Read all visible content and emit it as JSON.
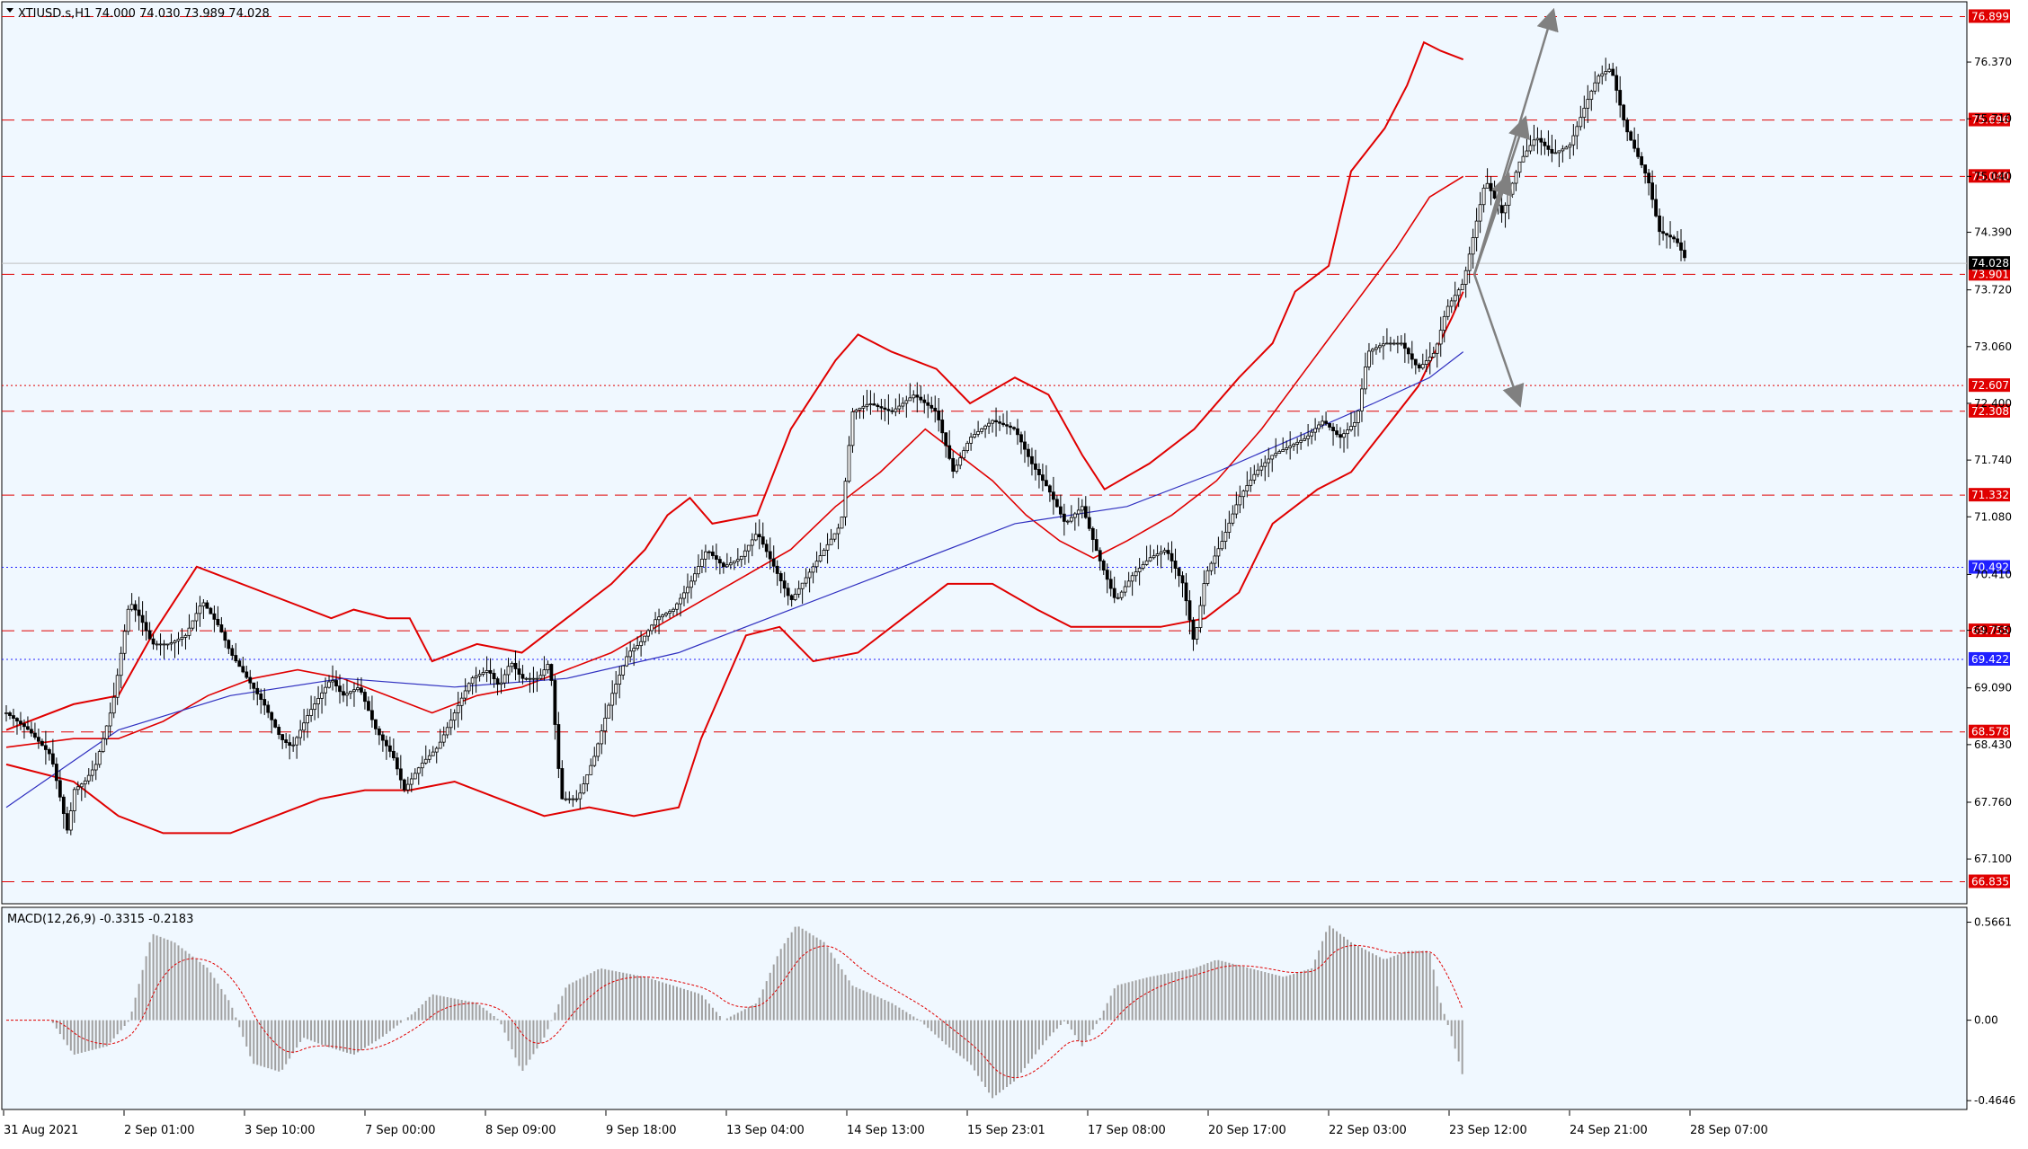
{
  "header": {
    "symbol_line": "XTIUSD.s,H1  74.000 74.030 73.989 74.028"
  },
  "macd_header": {
    "label": "MACD(12,26,9) -0.3315 -0.2183"
  },
  "colors": {
    "background": "#f0f8ff",
    "bollinger": "#e00000",
    "ma": "#3030c0",
    "resistance": "#e00000",
    "blue_level": "#2020ff",
    "candles": "#000000",
    "arrows": "#808080",
    "macd_hist": "#a0a0a0",
    "macd_signal": "#e00000"
  },
  "chart_data": [
    {
      "type": "candlestick",
      "title": "XTIUSD.s,H1",
      "ylim": [
        66.6,
        77.05
      ],
      "price_ticks": [
        "76.370",
        "75.710",
        "75.040",
        "74.390",
        "73.720",
        "73.060",
        "72.400",
        "71.740",
        "71.080",
        "70.410",
        "69.760",
        "69.090",
        "68.430",
        "67.760",
        "67.100"
      ],
      "x_tick_labels": [
        "31 Aug 2021",
        "2 Sep 01:00",
        "3 Sep 10:00",
        "7 Sep 00:00",
        "8 Sep 09:00",
        "9 Sep 18:00",
        "13 Sep 04:00",
        "14 Sep 13:00",
        "15 Sep 23:01",
        "17 Sep 08:00",
        "20 Sep 17:00",
        "22 Sep 03:00",
        "23 Sep 12:00",
        "24 Sep 21:00",
        "28 Sep 07:00"
      ],
      "current_price": "74.028",
      "levels": [
        {
          "value": 76.899,
          "label": "76.899",
          "style": "dashed",
          "color": "#e00000"
        },
        {
          "value": 75.696,
          "label": "75.696",
          "style": "dashed",
          "color": "#e00000"
        },
        {
          "value": 75.04,
          "label": "75.040",
          "style": "dashed",
          "color": "#e00000"
        },
        {
          "value": 73.901,
          "label": "73.901",
          "style": "dashed",
          "color": "#e00000"
        },
        {
          "value": 72.607,
          "label": "72.607",
          "style": "dotted",
          "color": "#e00000"
        },
        {
          "value": 72.308,
          "label": "72.308",
          "style": "dashed",
          "color": "#e00000"
        },
        {
          "value": 71.332,
          "label": "71.332",
          "style": "dashed",
          "color": "#e00000"
        },
        {
          "value": 70.492,
          "label": "70.492",
          "style": "dotted",
          "color": "#2020ff"
        },
        {
          "value": 69.755,
          "label": "69.755",
          "style": "dashed",
          "color": "#e00000"
        },
        {
          "value": 69.422,
          "label": "69.422",
          "style": "dotted",
          "color": "#2020ff"
        },
        {
          "value": 68.578,
          "label": "68.578",
          "style": "dashed",
          "color": "#e00000"
        },
        {
          "value": 66.835,
          "label": "66.835",
          "style": "dashed",
          "color": "#e00000"
        }
      ],
      "price_path": [
        [
          0,
          68.8
        ],
        [
          20,
          68.6
        ],
        [
          40,
          68.3
        ],
        [
          55,
          67.4
        ],
        [
          60,
          67.9
        ],
        [
          70,
          68.0
        ],
        [
          80,
          68.2
        ],
        [
          95,
          68.9
        ],
        [
          110,
          70.1
        ],
        [
          120,
          69.9
        ],
        [
          130,
          69.6
        ],
        [
          145,
          69.6
        ],
        [
          160,
          69.7
        ],
        [
          175,
          70.1
        ],
        [
          190,
          69.8
        ],
        [
          200,
          69.5
        ],
        [
          215,
          69.2
        ],
        [
          230,
          68.9
        ],
        [
          245,
          68.5
        ],
        [
          255,
          68.4
        ],
        [
          270,
          68.8
        ],
        [
          290,
          69.2
        ],
        [
          300,
          69.0
        ],
        [
          315,
          69.1
        ],
        [
          330,
          68.6
        ],
        [
          345,
          68.3
        ],
        [
          355,
          67.9
        ],
        [
          370,
          68.2
        ],
        [
          385,
          68.4
        ],
        [
          400,
          68.8
        ],
        [
          415,
          69.2
        ],
        [
          430,
          69.3
        ],
        [
          440,
          69.1
        ],
        [
          450,
          69.4
        ],
        [
          460,
          69.2
        ],
        [
          475,
          69.2
        ],
        [
          485,
          69.4
        ],
        [
          495,
          67.8
        ],
        [
          510,
          67.8
        ],
        [
          525,
          68.3
        ],
        [
          540,
          69.0
        ],
        [
          555,
          69.5
        ],
        [
          565,
          69.6
        ],
        [
          580,
          69.9
        ],
        [
          595,
          70.0
        ],
        [
          610,
          70.3
        ],
        [
          625,
          70.7
        ],
        [
          640,
          70.5
        ],
        [
          655,
          70.6
        ],
        [
          670,
          70.9
        ],
        [
          685,
          70.5
        ],
        [
          700,
          70.1
        ],
        [
          715,
          70.4
        ],
        [
          730,
          70.7
        ],
        [
          745,
          71.0
        ],
        [
          755,
          72.3
        ],
        [
          770,
          72.4
        ],
        [
          790,
          72.3
        ],
        [
          810,
          72.5
        ],
        [
          830,
          72.3
        ],
        [
          845,
          71.6
        ],
        [
          860,
          72.0
        ],
        [
          880,
          72.2
        ],
        [
          900,
          72.1
        ],
        [
          915,
          71.7
        ],
        [
          930,
          71.4
        ],
        [
          945,
          71.0
        ],
        [
          960,
          71.2
        ],
        [
          975,
          70.6
        ],
        [
          990,
          70.1
        ],
        [
          1005,
          70.4
        ],
        [
          1020,
          70.6
        ],
        [
          1035,
          70.7
        ],
        [
          1050,
          70.3
        ],
        [
          1060,
          69.6
        ],
        [
          1070,
          70.4
        ],
        [
          1085,
          70.8
        ],
        [
          1100,
          71.3
        ],
        [
          1115,
          71.6
        ],
        [
          1130,
          71.8
        ],
        [
          1145,
          71.9
        ],
        [
          1160,
          72.0
        ],
        [
          1175,
          72.2
        ],
        [
          1190,
          72.0
        ],
        [
          1205,
          72.2
        ],
        [
          1215,
          73.0
        ],
        [
          1230,
          73.1
        ],
        [
          1245,
          73.1
        ],
        [
          1260,
          72.8
        ],
        [
          1275,
          73.0
        ],
        [
          1285,
          73.5
        ],
        [
          1300,
          73.8
        ],
        [
          1310,
          74.4
        ],
        [
          1320,
          75.0
        ],
        [
          1335,
          74.6
        ],
        [
          1350,
          75.2
        ],
        [
          1365,
          75.5
        ],
        [
          1380,
          75.3
        ],
        [
          1395,
          75.4
        ],
        [
          1410,
          75.9
        ],
        [
          1420,
          76.2
        ],
        [
          1432,
          76.3
        ],
        [
          1445,
          75.6
        ],
        [
          1455,
          75.3
        ],
        [
          1465,
          75.0
        ],
        [
          1475,
          74.4
        ],
        [
          1490,
          74.3
        ],
        [
          1500,
          74.03
        ]
      ],
      "bollinger_upper": [
        [
          0,
          68.6
        ],
        [
          60,
          68.9
        ],
        [
          100,
          69.0
        ],
        [
          130,
          69.7
        ],
        [
          170,
          70.5
        ],
        [
          230,
          70.2
        ],
        [
          290,
          69.9
        ],
        [
          310,
          70.0
        ],
        [
          340,
          69.9
        ],
        [
          360,
          69.9
        ],
        [
          380,
          69.4
        ],
        [
          420,
          69.6
        ],
        [
          460,
          69.5
        ],
        [
          500,
          69.9
        ],
        [
          540,
          70.3
        ],
        [
          570,
          70.7
        ],
        [
          590,
          71.1
        ],
        [
          610,
          71.3
        ],
        [
          630,
          71.0
        ],
        [
          670,
          71.1
        ],
        [
          700,
          72.1
        ],
        [
          740,
          72.9
        ],
        [
          760,
          73.2
        ],
        [
          790,
          73.0
        ],
        [
          830,
          72.8
        ],
        [
          860,
          72.4
        ],
        [
          900,
          72.7
        ],
        [
          930,
          72.5
        ],
        [
          960,
          71.8
        ],
        [
          980,
          71.4
        ],
        [
          1020,
          71.7
        ],
        [
          1060,
          72.1
        ],
        [
          1100,
          72.7
        ],
        [
          1130,
          73.1
        ],
        [
          1150,
          73.7
        ],
        [
          1180,
          74.0
        ],
        [
          1200,
          75.1
        ],
        [
          1230,
          75.6
        ],
        [
          1250,
          76.1
        ],
        [
          1265,
          76.6
        ],
        [
          1280,
          76.5
        ],
        [
          1300,
          76.4
        ]
      ],
      "bollinger_mid": [
        [
          0,
          68.4
        ],
        [
          60,
          68.5
        ],
        [
          100,
          68.5
        ],
        [
          140,
          68.7
        ],
        [
          180,
          69.0
        ],
        [
          220,
          69.2
        ],
        [
          260,
          69.3
        ],
        [
          300,
          69.2
        ],
        [
          340,
          69.0
        ],
        [
          380,
          68.8
        ],
        [
          420,
          69.0
        ],
        [
          460,
          69.1
        ],
        [
          500,
          69.3
        ],
        [
          540,
          69.5
        ],
        [
          580,
          69.8
        ],
        [
          620,
          70.1
        ],
        [
          660,
          70.4
        ],
        [
          700,
          70.7
        ],
        [
          740,
          71.2
        ],
        [
          780,
          71.6
        ],
        [
          820,
          72.1
        ],
        [
          850,
          71.8
        ],
        [
          880,
          71.5
        ],
        [
          910,
          71.1
        ],
        [
          940,
          70.8
        ],
        [
          970,
          70.6
        ],
        [
          1000,
          70.8
        ],
        [
          1040,
          71.1
        ],
        [
          1080,
          71.5
        ],
        [
          1120,
          72.1
        ],
        [
          1160,
          72.8
        ],
        [
          1200,
          73.5
        ],
        [
          1240,
          74.2
        ],
        [
          1270,
          74.8
        ],
        [
          1300,
          75.04
        ]
      ],
      "bollinger_lower": [
        [
          0,
          68.2
        ],
        [
          60,
          68.0
        ],
        [
          100,
          67.6
        ],
        [
          140,
          67.4
        ],
        [
          200,
          67.4
        ],
        [
          240,
          67.6
        ],
        [
          280,
          67.8
        ],
        [
          320,
          67.9
        ],
        [
          360,
          67.9
        ],
        [
          400,
          68.0
        ],
        [
          440,
          67.8
        ],
        [
          480,
          67.6
        ],
        [
          520,
          67.7
        ],
        [
          560,
          67.6
        ],
        [
          600,
          67.7
        ],
        [
          620,
          68.5
        ],
        [
          660,
          69.7
        ],
        [
          690,
          69.8
        ],
        [
          720,
          69.4
        ],
        [
          760,
          69.5
        ],
        [
          800,
          69.9
        ],
        [
          840,
          70.3
        ],
        [
          880,
          70.3
        ],
        [
          920,
          70.0
        ],
        [
          950,
          69.8
        ],
        [
          990,
          69.8
        ],
        [
          1030,
          69.8
        ],
        [
          1070,
          69.9
        ],
        [
          1100,
          70.2
        ],
        [
          1130,
          71.0
        ],
        [
          1170,
          71.4
        ],
        [
          1200,
          71.6
        ],
        [
          1230,
          72.1
        ],
        [
          1260,
          72.6
        ],
        [
          1290,
          73.4
        ],
        [
          1300,
          73.7
        ]
      ],
      "moving_average": [
        [
          0,
          67.7
        ],
        [
          100,
          68.6
        ],
        [
          200,
          69.0
        ],
        [
          300,
          69.2
        ],
        [
          400,
          69.1
        ],
        [
          500,
          69.2
        ],
        [
          600,
          69.5
        ],
        [
          700,
          70.0
        ],
        [
          800,
          70.5
        ],
        [
          900,
          71.0
        ],
        [
          1000,
          71.2
        ],
        [
          1080,
          71.6
        ],
        [
          1150,
          72.0
        ],
        [
          1220,
          72.4
        ],
        [
          1270,
          72.7
        ],
        [
          1300,
          73.0
        ]
      ],
      "arrows": [
        {
          "from": [
            1310,
            73.9
          ],
          "to": [
            1380,
            76.95
          ]
        },
        {
          "from": [
            1310,
            73.9
          ],
          "to": [
            1355,
            75.7
          ]
        },
        {
          "from": [
            1310,
            73.9
          ],
          "to": [
            1340,
            75.04
          ]
        },
        {
          "from": [
            1310,
            73.9
          ],
          "to": [
            1350,
            72.4
          ]
        }
      ]
    },
    {
      "type": "bar",
      "title": "MACD(12,26,9)",
      "ylim": [
        -0.5,
        0.6
      ],
      "tick_labels": [
        "0.5661",
        "0.00",
        "-0.4646"
      ],
      "histogram": [
        [
          0,
          0.0
        ],
        [
          40,
          0.0
        ],
        [
          60,
          -0.2
        ],
        [
          90,
          -0.15
        ],
        [
          110,
          0.0
        ],
        [
          130,
          0.5
        ],
        [
          150,
          0.45
        ],
        [
          180,
          0.3
        ],
        [
          200,
          0.1
        ],
        [
          220,
          -0.25
        ],
        [
          245,
          -0.3
        ],
        [
          265,
          -0.1
        ],
        [
          285,
          -0.15
        ],
        [
          310,
          -0.2
        ],
        [
          335,
          -0.1
        ],
        [
          365,
          0.05
        ],
        [
          380,
          0.15
        ],
        [
          420,
          0.1
        ],
        [
          440,
          0.0
        ],
        [
          460,
          -0.3
        ],
        [
          480,
          -0.1
        ],
        [
          500,
          0.2
        ],
        [
          530,
          0.3
        ],
        [
          570,
          0.25
        ],
        [
          620,
          0.15
        ],
        [
          640,
          0.0
        ],
        [
          670,
          0.1
        ],
        [
          690,
          0.4
        ],
        [
          705,
          0.55
        ],
        [
          730,
          0.45
        ],
        [
          755,
          0.2
        ],
        [
          790,
          0.1
        ],
        [
          815,
          0.0
        ],
        [
          840,
          -0.15
        ],
        [
          860,
          -0.25
        ],
        [
          880,
          -0.45
        ],
        [
          900,
          -0.35
        ],
        [
          930,
          -0.1
        ],
        [
          945,
          0.0
        ],
        [
          960,
          -0.15
        ],
        [
          975,
          0.0
        ],
        [
          990,
          0.2
        ],
        [
          1020,
          0.25
        ],
        [
          1060,
          0.3
        ],
        [
          1080,
          0.35
        ],
        [
          1110,
          0.3
        ],
        [
          1140,
          0.25
        ],
        [
          1165,
          0.3
        ],
        [
          1180,
          0.55
        ],
        [
          1200,
          0.45
        ],
        [
          1230,
          0.35
        ],
        [
          1250,
          0.4
        ],
        [
          1270,
          0.4
        ],
        [
          1280,
          0.1
        ],
        [
          1290,
          -0.1
        ],
        [
          1300,
          -0.33
        ]
      ]
    }
  ]
}
